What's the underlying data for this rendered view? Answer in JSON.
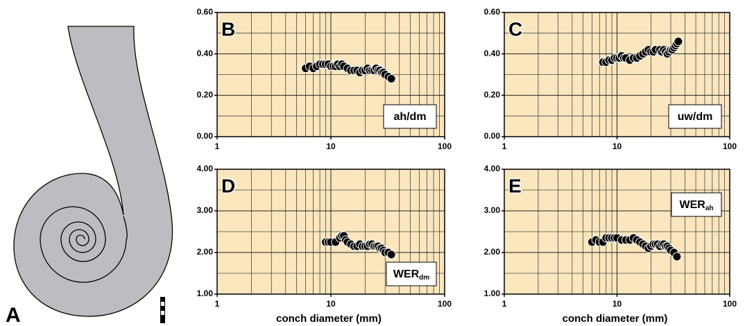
{
  "figure_label": "A",
  "chart_data": [
    {
      "type": "scatter",
      "panel": "B",
      "label": "ah/dm",
      "label_corner": "lower right",
      "log_x": true,
      "grid": true,
      "xlim": [
        1,
        100
      ],
      "xticks": [
        1,
        10,
        100
      ],
      "x_minor_grid": [
        2,
        3,
        4,
        5,
        6,
        7,
        8,
        9,
        20,
        30,
        40,
        50,
        60,
        70,
        80,
        90
      ],
      "ylim": [
        0,
        0.6
      ],
      "yticks": [
        {
          "value": 0,
          "label": "0.00"
        },
        {
          "value": 0.2,
          "label": "0.20"
        },
        {
          "value": 0.4,
          "label": "0.40"
        },
        {
          "value": 0.6,
          "label": "0.60"
        }
      ],
      "y_minor_grid": [
        0.1,
        0.3,
        0.5
      ],
      "series": [
        {
          "color": "#000000",
          "x": [
            6,
            6.5,
            7,
            7.5,
            8,
            8.5,
            9,
            9.5,
            10,
            10.5,
            11,
            11.5,
            12,
            12.5,
            13,
            14,
            15,
            16,
            17,
            18,
            19,
            20,
            21,
            22,
            23,
            24,
            25,
            26,
            27,
            28,
            29,
            30,
            32,
            34
          ],
          "values": [
            0.33,
            0.34,
            0.33,
            0.34,
            0.35,
            0.35,
            0.35,
            0.35,
            0.34,
            0.34,
            0.34,
            0.35,
            0.34,
            0.35,
            0.34,
            0.33,
            0.32,
            0.32,
            0.32,
            0.31,
            0.32,
            0.32,
            0.33,
            0.32,
            0.32,
            0.32,
            0.33,
            0.32,
            0.32,
            0.31,
            0.31,
            0.3,
            0.29,
            0.28
          ]
        }
      ]
    },
    {
      "type": "scatter",
      "panel": "C",
      "label": "uw/dm",
      "label_corner": "lower right",
      "log_x": true,
      "grid": true,
      "xlim": [
        1,
        100
      ],
      "xticks": [
        1,
        10,
        100
      ],
      "x_minor_grid": [
        2,
        3,
        4,
        5,
        6,
        7,
        8,
        9,
        20,
        30,
        40,
        50,
        60,
        70,
        80,
        90
      ],
      "ylim": [
        0,
        0.6
      ],
      "yticks": [
        {
          "value": 0,
          "label": "0.00"
        },
        {
          "value": 0.2,
          "label": "0.20"
        },
        {
          "value": 0.4,
          "label": "0.40"
        },
        {
          "value": 0.6,
          "label": "0.60"
        }
      ],
      "y_minor_grid": [
        0.1,
        0.3,
        0.5
      ],
      "series": [
        {
          "color": "#000000",
          "x": [
            7.5,
            8,
            8.5,
            9,
            9.5,
            10,
            10.5,
            11,
            11.5,
            12,
            13,
            14,
            15,
            16,
            17,
            18,
            19,
            20,
            21,
            22,
            24,
            25,
            26,
            27,
            28,
            29,
            30,
            31,
            32,
            33,
            34,
            35
          ],
          "values": [
            0.36,
            0.36,
            0.37,
            0.37,
            0.38,
            0.38,
            0.38,
            0.39,
            0.38,
            0.38,
            0.37,
            0.38,
            0.38,
            0.39,
            0.4,
            0.41,
            0.42,
            0.41,
            0.41,
            0.42,
            0.42,
            0.41,
            0.42,
            0.41,
            0.4,
            0.41,
            0.42,
            0.42,
            0.43,
            0.44,
            0.45,
            0.46
          ]
        }
      ]
    },
    {
      "type": "scatter",
      "panel": "D",
      "label": "WER",
      "label_sub": "dm",
      "label_corner": "lower right",
      "log_x": true,
      "grid": true,
      "xlabel": "conch diameter (mm)",
      "xlim": [
        1,
        100
      ],
      "xticks": [
        1,
        10,
        100
      ],
      "x_minor_grid": [
        2,
        3,
        4,
        5,
        6,
        7,
        8,
        9,
        20,
        30,
        40,
        50,
        60,
        70,
        80,
        90
      ],
      "ylim": [
        1,
        4
      ],
      "yticks": [
        {
          "value": 1,
          "label": "1.00"
        },
        {
          "value": 2,
          "label": "2.00"
        },
        {
          "value": 3,
          "label": "3.00"
        },
        {
          "value": 4,
          "label": "4.00"
        }
      ],
      "y_minor_grid": [
        1.5,
        2.5,
        3.5
      ],
      "series": [
        {
          "color": "#000000",
          "x": [
            9,
            9.5,
            10,
            11,
            12,
            12.5,
            13,
            13.5,
            14,
            15,
            16,
            17,
            18,
            19,
            20,
            21,
            22,
            23,
            24,
            25,
            26,
            27,
            28,
            29,
            30,
            32,
            34
          ],
          "values": [
            2.25,
            2.25,
            2.25,
            2.25,
            2.35,
            2.4,
            2.4,
            2.3,
            2.25,
            2.2,
            2.15,
            2.15,
            2.2,
            2.15,
            2.15,
            2.15,
            2.2,
            2.2,
            2.15,
            2.15,
            2.15,
            2.1,
            2.1,
            2.05,
            2.0,
            2.0,
            1.95
          ]
        }
      ]
    },
    {
      "type": "scatter",
      "panel": "E",
      "label": "WER",
      "label_sub": "ah",
      "label_corner": "upper right",
      "log_x": true,
      "grid": true,
      "xlabel": "conch diameter (mm)",
      "xlim": [
        1,
        100
      ],
      "xticks": [
        1,
        10,
        100
      ],
      "x_minor_grid": [
        2,
        3,
        4,
        5,
        6,
        7,
        8,
        9,
        20,
        30,
        40,
        50,
        60,
        70,
        80,
        90
      ],
      "ylim": [
        1,
        4
      ],
      "yticks": [
        {
          "value": 1,
          "label": "1.00"
        },
        {
          "value": 2,
          "label": "2.00"
        },
        {
          "value": 3,
          "label": "3.00"
        },
        {
          "value": 4,
          "label": "4.00"
        }
      ],
      "y_minor_grid": [
        1.5,
        2.5,
        3.5
      ],
      "series": [
        {
          "color": "#000000",
          "x": [
            6,
            6.5,
            7,
            7.5,
            8,
            8.5,
            9,
            9.5,
            10,
            11,
            12,
            13,
            14,
            15,
            16,
            17,
            18,
            19,
            20,
            21,
            22,
            23,
            24,
            25,
            26,
            27,
            28,
            29,
            30,
            32,
            34
          ],
          "values": [
            2.25,
            2.3,
            2.25,
            2.25,
            2.35,
            2.35,
            2.35,
            2.35,
            2.35,
            2.3,
            2.3,
            2.3,
            2.35,
            2.3,
            2.25,
            2.2,
            2.15,
            2.1,
            2.15,
            2.2,
            2.2,
            2.2,
            2.15,
            2.2,
            2.2,
            2.15,
            2.15,
            2.1,
            2.05,
            2.0,
            1.9
          ]
        }
      ]
    }
  ]
}
